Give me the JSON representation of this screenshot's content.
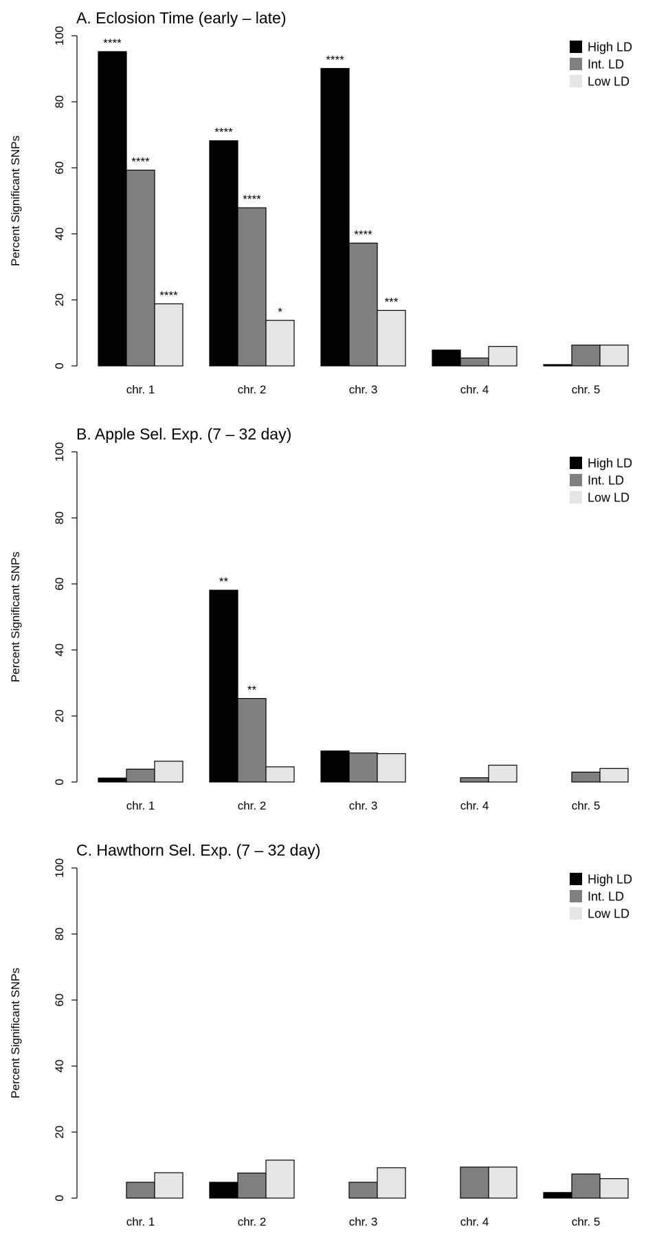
{
  "chart_data": [
    {
      "type": "bar",
      "title": "A. Eclosion Time (early – late)",
      "ylabel": "Percent Significant SNPs",
      "ylim": [
        0,
        100
      ],
      "yticks": [
        "0",
        "20",
        "40",
        "60",
        "80",
        "100"
      ],
      "categories": [
        "chr. 1",
        "chr. 2",
        "chr. 3",
        "chr. 4",
        "chr. 5"
      ],
      "legend": {
        "position": "top-right",
        "entries": [
          "High LD",
          "Int. LD",
          "Low LD"
        ]
      },
      "series": [
        {
          "name": "High LD",
          "color": "#000000",
          "values": [
            95.2,
            68.2,
            90.1,
            4.8,
            0.4
          ]
        },
        {
          "name": "Int. LD",
          "color": "#808080",
          "values": [
            59.3,
            47.9,
            37.2,
            2.4,
            6.3
          ]
        },
        {
          "name": "Low LD",
          "color": "#e5e5e5",
          "values": [
            18.8,
            13.8,
            16.8,
            5.9,
            6.3
          ]
        }
      ],
      "annotations": [
        [
          "****",
          "****",
          "****",
          "",
          ""
        ],
        [
          "****",
          "****",
          "****",
          "",
          ""
        ],
        [
          "****",
          "*",
          "***",
          "",
          ""
        ]
      ]
    },
    {
      "type": "bar",
      "title": "B. Apple Sel. Exp. (7 – 32 day)",
      "ylabel": "Percent Significant SNPs",
      "ylim": [
        0,
        100
      ],
      "yticks": [
        "0",
        "20",
        "40",
        "60",
        "80",
        "100"
      ],
      "categories": [
        "chr. 1",
        "chr. 2",
        "chr. 3",
        "chr. 4",
        "chr. 5"
      ],
      "legend": {
        "position": "top-right",
        "entries": [
          "High LD",
          "Int. LD",
          "Low LD"
        ]
      },
      "series": [
        {
          "name": "High LD",
          "color": "#000000",
          "values": [
            1.2,
            58.1,
            9.4,
            0,
            0
          ]
        },
        {
          "name": "Int. LD",
          "color": "#808080",
          "values": [
            3.9,
            25.3,
            8.8,
            1.3,
            3.0
          ]
        },
        {
          "name": "Low LD",
          "color": "#e5e5e5",
          "values": [
            6.3,
            4.6,
            8.6,
            5.1,
            4.1
          ]
        }
      ],
      "annotations": [
        [
          "",
          "**",
          "",
          "",
          ""
        ],
        [
          "",
          "**",
          "",
          "",
          ""
        ],
        [
          "",
          "",
          "",
          "",
          ""
        ]
      ]
    },
    {
      "type": "bar",
      "title": "C. Hawthorn Sel. Exp. (7 – 32 day)",
      "ylabel": "Percent Significant SNPs",
      "ylim": [
        0,
        100
      ],
      "yticks": [
        "0",
        "20",
        "40",
        "60",
        "80",
        "100"
      ],
      "categories": [
        "chr. 1",
        "chr. 2",
        "chr. 3",
        "chr. 4",
        "chr. 5"
      ],
      "legend": {
        "position": "top-right",
        "entries": [
          "High LD",
          "Int. LD",
          "Low LD"
        ]
      },
      "series": [
        {
          "name": "High LD",
          "color": "#000000",
          "values": [
            0,
            4.8,
            0,
            0,
            1.7
          ]
        },
        {
          "name": "Int. LD",
          "color": "#808080",
          "values": [
            4.8,
            7.6,
            4.8,
            9.4,
            7.3
          ]
        },
        {
          "name": "Low LD",
          "color": "#e5e5e5",
          "values": [
            7.7,
            11.5,
            9.2,
            9.4,
            5.9
          ]
        }
      ],
      "annotations": [
        [
          "",
          "",
          "",
          "",
          ""
        ],
        [
          "",
          "",
          "",
          "",
          ""
        ],
        [
          "",
          "",
          "",
          "",
          ""
        ]
      ]
    }
  ]
}
